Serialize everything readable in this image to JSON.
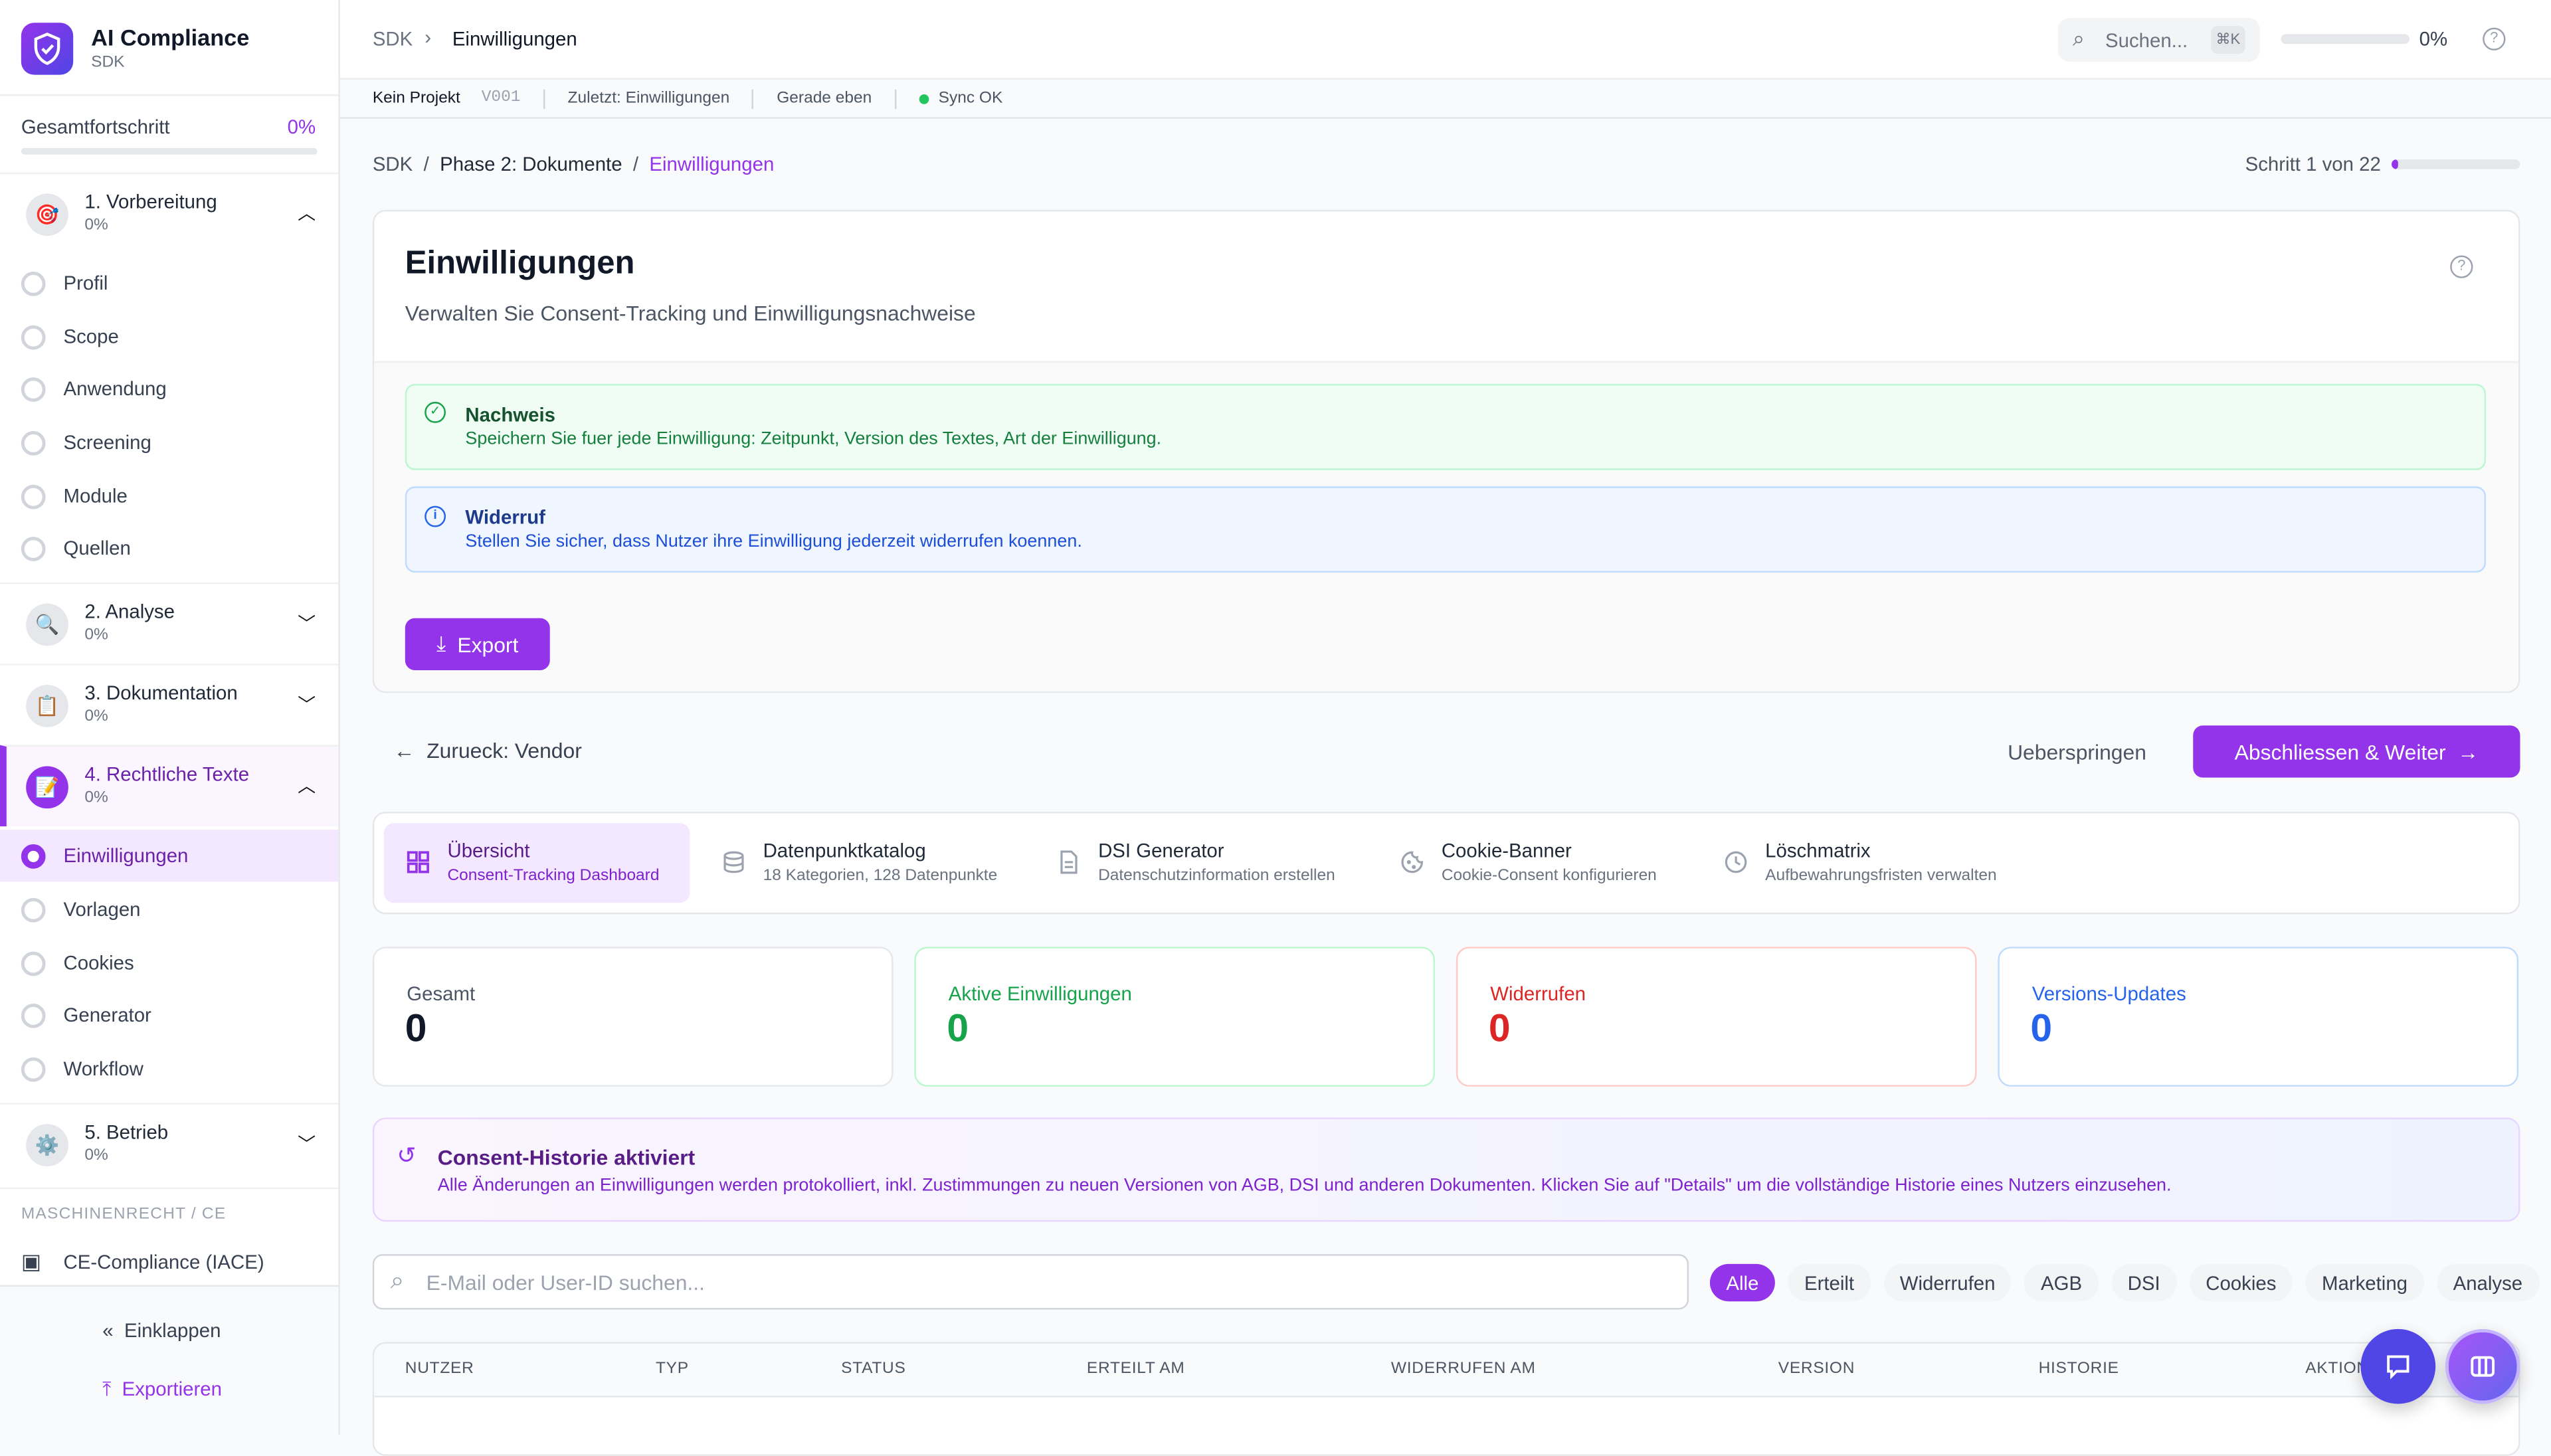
{
  "app": {
    "title": "AI Compliance",
    "subtitle": "SDK"
  },
  "sidebar": {
    "progress_label": "Gesamtfortschritt",
    "progress_value": "0%",
    "progress_fraction": 0,
    "groups": [
      {
        "label": "1. Vorbereitung",
        "progress": "0%",
        "icon": "target-icon",
        "expanded": true,
        "items": [
          "Profil",
          "Scope",
          "Anwendung",
          "Screening",
          "Module",
          "Quellen"
        ]
      },
      {
        "label": "2. Analyse",
        "progress": "0%",
        "icon": "magnifier-icon",
        "expanded": false
      },
      {
        "label": "3. Dokumentation",
        "progress": "0%",
        "icon": "clipboard-icon",
        "expanded": false
      },
      {
        "label": "4. Rechtliche Texte",
        "progress": "0%",
        "icon": "memo-icon",
        "expanded": true,
        "items": [
          "Einwilligungen",
          "Vorlagen",
          "Cookies",
          "Generator",
          "Workflow"
        ]
      },
      {
        "label": "5. Betrieb",
        "progress": "0%",
        "icon": "gear-icon",
        "expanded": false
      }
    ],
    "section_label": "MASCHINENRECHT / CE",
    "ce_item": "CE-Compliance (IACE)",
    "collapse": "Einklappen",
    "export": "Exportieren"
  },
  "header": {
    "crumb_root": "SDK",
    "crumb_current": "Einwilligungen",
    "search_placeholder": "Suchen...",
    "shortcut": "⌘K",
    "progress": "0%",
    "progress_fraction": 0
  },
  "statusbar": {
    "project": "Kein Projekt",
    "version": "V001",
    "last": "Zuletzt: Einwilligungen",
    "time": "Gerade eben",
    "sync": "Sync OK",
    "sync_color": "#22c55e"
  },
  "breadcrumb": {
    "a": "SDK",
    "b": "Phase 2: Dokumente",
    "c": "Einwilligungen",
    "step": "Schritt 1 von 22",
    "step_fraction": 0.045
  },
  "page": {
    "title": "Einwilligungen",
    "subtitle": "Verwalten Sie Consent-Tracking und Einwilligungsnachweise",
    "notice_green": {
      "title": "Nachweis",
      "text": "Speichern Sie fuer jede Einwilligung: Zeitpunkt, Version des Textes, Art der Einwilligung."
    },
    "notice_blue": {
      "title": "Widerruf",
      "text": "Stellen Sie sicher, dass Nutzer ihre Einwilligung jederzeit widerrufen koennen."
    },
    "export": "Export"
  },
  "nav": {
    "back": "Zurueck: Vendor",
    "skip": "Ueberspringen",
    "next": "Abschliessen & Weiter"
  },
  "tabs": [
    {
      "title": "Übersicht",
      "sub": "Consent-Tracking Dashboard",
      "icon": "grid-icon",
      "active": true
    },
    {
      "title": "Datenpunktkatalog",
      "sub": "18 Kategorien, 128 Datenpunkte",
      "icon": "database-icon"
    },
    {
      "title": "DSI Generator",
      "sub": "Datenschutzinformation erstellen",
      "icon": "document-icon"
    },
    {
      "title": "Cookie-Banner",
      "sub": "Cookie-Consent konfigurieren",
      "icon": "cookie-icon"
    },
    {
      "title": "Löschmatrix",
      "sub": "Aufbewahrungsfristen verwalten",
      "icon": "clock-icon"
    }
  ],
  "stats": [
    {
      "label": "Gesamt",
      "value": "0",
      "color": "#111827"
    },
    {
      "label": "Aktive Einwilligungen",
      "value": "0",
      "color": "#16a34a"
    },
    {
      "label": "Widerrufen",
      "value": "0",
      "color": "#dc2626"
    },
    {
      "label": "Versions-Updates",
      "value": "0",
      "color": "#2563eb"
    }
  ],
  "history": {
    "title": "Consent-Historie aktiviert",
    "text": "Alle Änderungen an Einwilligungen werden protokolliert, inkl. Zustimmungen zu neuen Versionen von AGB, DSI und anderen Dokumenten. Klicken Sie auf \"Details\" um die vollständige Historie eines Nutzers einzusehen."
  },
  "filter": {
    "placeholder": "E-Mail oder User-ID suchen...",
    "chips": [
      "Alle",
      "Erteilt",
      "Widerrufen",
      "AGB",
      "DSI",
      "Cookies",
      "Marketing",
      "Analyse"
    ]
  },
  "table": {
    "columns": [
      "NUTZER",
      "TYP",
      "STATUS",
      "ERTEILT AM",
      "WIDERRUFEN AM",
      "VERSION",
      "HISTORIE",
      "AKTIONEN"
    ]
  },
  "colors": {
    "accent": "#9333ea",
    "indigo": "#4f46e5"
  }
}
